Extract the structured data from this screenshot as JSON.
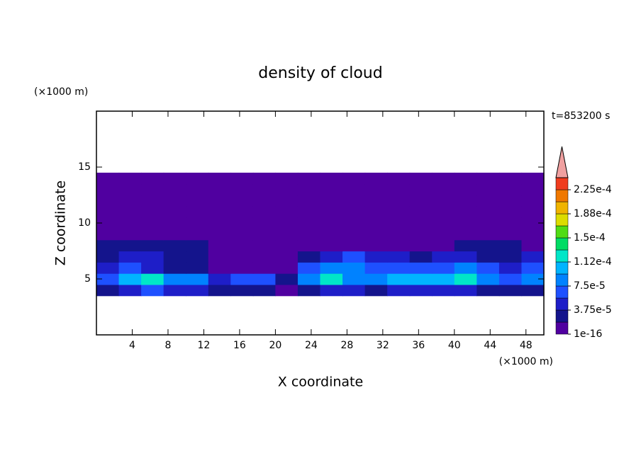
{
  "chart_data": {
    "type": "contour",
    "title": "density of cloud",
    "xlabel": "X coordinate",
    "ylabel": "Z coordinate",
    "x_unit": "(×1000 m)",
    "y_unit": "(×1000 m)",
    "time_label": "t=853200 s",
    "xlim": [
      0,
      50
    ],
    "ylim": [
      0,
      20
    ],
    "xticks": [
      4,
      8,
      12,
      16,
      20,
      24,
      28,
      32,
      36,
      40,
      44,
      48
    ],
    "yticks": [
      5,
      10,
      15
    ],
    "x": [
      1.25,
      3.75,
      6.25,
      8.75,
      11.25,
      13.75,
      16.25,
      18.75,
      21.25,
      23.75,
      26.25,
      28.75,
      31.25,
      33.75,
      36.25,
      38.75,
      41.25,
      43.75,
      46.25,
      48.75
    ],
    "y": [
      4,
      5,
      6,
      7,
      8,
      9,
      10,
      11,
      12,
      13,
      14
    ],
    "z": [
      [
        3e-05,
        5e-05,
        6e-05,
        5e-05,
        4e-05,
        2e-05,
        3e-05,
        2e-05,
        1e-16,
        3e-05,
        5e-05,
        4e-05,
        3e-05,
        4e-05,
        5e-05,
        4e-05,
        5e-05,
        3e-05,
        2e-05,
        3e-05
      ],
      [
        6e-05,
        0.00011,
        0.00012,
        9e-05,
        8e-05,
        5e-05,
        7e-05,
        6e-05,
        2e-05,
        9e-05,
        0.00013,
        9e-05,
        8e-05,
        0.00011,
        0.00011,
        0.0001,
        0.00012,
        9e-05,
        6e-05,
        8e-05
      ],
      [
        5e-05,
        6e-05,
        5e-05,
        3e-05,
        2e-05,
        1e-05,
        1e-05,
        1e-05,
        1e-16,
        6e-05,
        8e-05,
        8e-05,
        6e-05,
        7e-05,
        6e-05,
        7e-05,
        8e-05,
        6e-05,
        5e-05,
        6e-05
      ],
      [
        3e-05,
        4e-05,
        5e-05,
        3e-05,
        2e-05,
        1e-05,
        1e-05,
        1e-16,
        1e-16,
        3e-05,
        5e-05,
        6e-05,
        4e-05,
        4e-05,
        3e-05,
        4e-05,
        5e-05,
        3e-05,
        2e-05,
        4e-05
      ],
      [
        2e-05,
        3e-05,
        3e-05,
        2e-05,
        2e-05,
        1e-05,
        1e-05,
        1e-05,
        1e-05,
        1e-05,
        1e-05,
        1e-05,
        1e-05,
        1e-05,
        1e-05,
        1e-05,
        2e-05,
        2e-05,
        2e-05,
        1e-05
      ],
      [
        1e-16,
        1e-16,
        1e-16,
        1e-16,
        1e-16,
        1e-16,
        1e-16,
        1e-16,
        1e-16,
        1e-16,
        1e-16,
        1e-16,
        1e-16,
        1e-16,
        1e-16,
        1e-16,
        1e-16,
        1e-16,
        1e-16,
        1e-16
      ],
      [
        1e-16,
        1e-16,
        1e-16,
        1e-16,
        1e-16,
        1e-16,
        1e-16,
        1e-16,
        1e-16,
        1e-16,
        1e-16,
        1e-16,
        1e-16,
        1e-16,
        1e-16,
        1e-16,
        1e-16,
        1e-16,
        1e-16,
        1e-16
      ],
      [
        1e-16,
        1e-16,
        1e-16,
        1e-16,
        1e-16,
        1e-16,
        1e-16,
        1e-16,
        1e-16,
        1e-16,
        1e-16,
        1e-16,
        1e-16,
        1e-16,
        1e-16,
        1e-16,
        1e-16,
        1e-16,
        1e-16,
        1e-16
      ],
      [
        1e-16,
        1e-16,
        1e-16,
        1e-16,
        1e-16,
        1e-16,
        1e-16,
        1e-16,
        1e-16,
        1e-16,
        1e-16,
        1e-16,
        1e-16,
        1e-16,
        1e-16,
        1e-16,
        1e-16,
        1e-16,
        1e-16,
        1e-16
      ],
      [
        1e-16,
        1e-16,
        1e-16,
        1e-16,
        1e-16,
        1e-16,
        1e-16,
        1e-16,
        1e-16,
        1e-16,
        1e-16,
        1e-16,
        1e-16,
        1e-16,
        1e-16,
        1e-16,
        1e-16,
        1e-16,
        1e-16,
        1e-16
      ],
      [
        1e-16,
        1e-16,
        1e-16,
        1e-16,
        1e-16,
        1e-16,
        1e-16,
        1e-16,
        1e-16,
        1e-16,
        1e-16,
        1e-16,
        1e-16,
        1e-16,
        1e-16,
        1e-16,
        1e-16,
        1e-16,
        1e-16,
        1e-16
      ]
    ],
    "levels": [
      1e-16,
      1.875e-05,
      3.75e-05,
      5.625e-05,
      7.5e-05,
      9.375e-05,
      0.0001125,
      0.00013125,
      0.00015,
      0.00016875,
      0.0001875,
      0.00020625,
      0.000225,
      0.00024375
    ],
    "colors": [
      "#5000a0",
      "#14148c",
      "#1e1ec8",
      "#1e50ff",
      "#0082ff",
      "#00b4ff",
      "#00e6c8",
      "#00dc64",
      "#50dc14",
      "#dcdc00",
      "#f0b400",
      "#f07800",
      "#f03c1e"
    ],
    "over_color": "#f0a0a0",
    "colorbar_ticks": [
      {
        "value": 1e-16,
        "label": "1e-16"
      },
      {
        "value": 3.75e-05,
        "label": "3.75e-5"
      },
      {
        "value": 7.5e-05,
        "label": "7.5e-5"
      },
      {
        "value": 0.0001125,
        "label": "1.12e-4"
      },
      {
        "value": 0.00015,
        "label": "1.5e-4"
      },
      {
        "value": 0.0001875,
        "label": "1.88e-4"
      },
      {
        "value": 0.000225,
        "label": "2.25e-4"
      }
    ]
  }
}
